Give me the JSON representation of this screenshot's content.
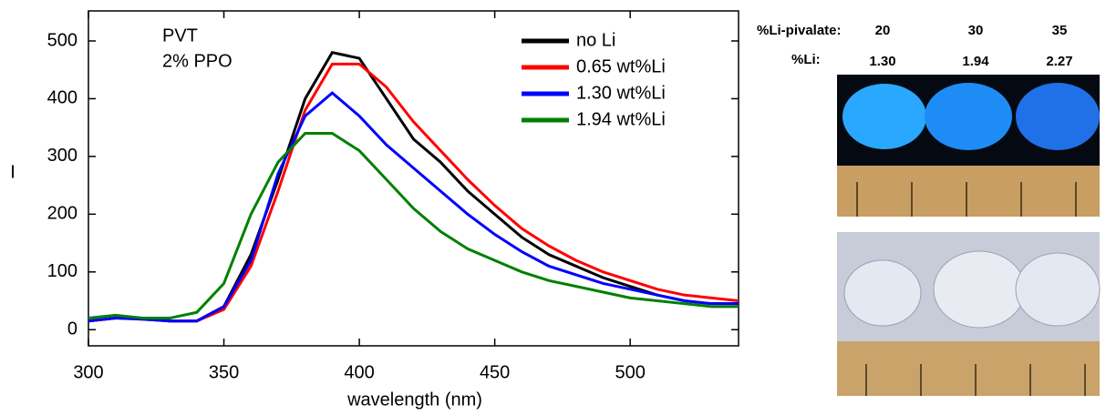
{
  "chart_data": {
    "type": "line",
    "annotations": [
      "PVT",
      "2% PPO"
    ],
    "x_label": "wavelength (nm)",
    "y_label": "I",
    "x": [
      300,
      310,
      320,
      330,
      340,
      350,
      360,
      370,
      380,
      390,
      400,
      410,
      420,
      430,
      440,
      450,
      460,
      470,
      480,
      490,
      500,
      510,
      520,
      530,
      540
    ],
    "series": [
      {
        "name": "no Li",
        "color": "#000000",
        "values": [
          15,
          20,
          20,
          15,
          15,
          40,
          130,
          260,
          400,
          480,
          470,
          400,
          330,
          290,
          240,
          200,
          160,
          130,
          110,
          90,
          75,
          60,
          50,
          45,
          45
        ]
      },
      {
        "name": "0.65 wt%Li",
        "color": "#ff0000",
        "values": [
          15,
          20,
          18,
          15,
          15,
          35,
          110,
          240,
          380,
          460,
          460,
          420,
          360,
          310,
          260,
          215,
          175,
          145,
          120,
          100,
          85,
          70,
          60,
          55,
          50
        ]
      },
      {
        "name": "1.30 wt%Li",
        "color": "#0000ff",
        "values": [
          15,
          20,
          18,
          15,
          15,
          40,
          120,
          270,
          370,
          410,
          370,
          320,
          280,
          240,
          200,
          165,
          135,
          110,
          95,
          80,
          70,
          60,
          50,
          45,
          45
        ]
      },
      {
        "name": "1.94 wt%Li",
        "color": "#008000",
        "values": [
          20,
          25,
          20,
          20,
          30,
          80,
          200,
          290,
          340,
          340,
          310,
          260,
          210,
          170,
          140,
          120,
          100,
          85,
          75,
          65,
          55,
          50,
          45,
          40,
          40
        ]
      }
    ],
    "xlim": [
      300,
      540
    ],
    "xticks": [
      300,
      350,
      400,
      450,
      500
    ],
    "ylim": [
      -28,
      552
    ],
    "yticks": [
      0,
      100,
      200,
      300,
      400,
      500
    ],
    "photos": {
      "row1_label": "%Li-pivalate:",
      "row1": [
        "20",
        "30",
        "35"
      ],
      "row2_label": "%Li:",
      "row2": [
        "1.30",
        "1.94",
        "2.27"
      ]
    }
  }
}
